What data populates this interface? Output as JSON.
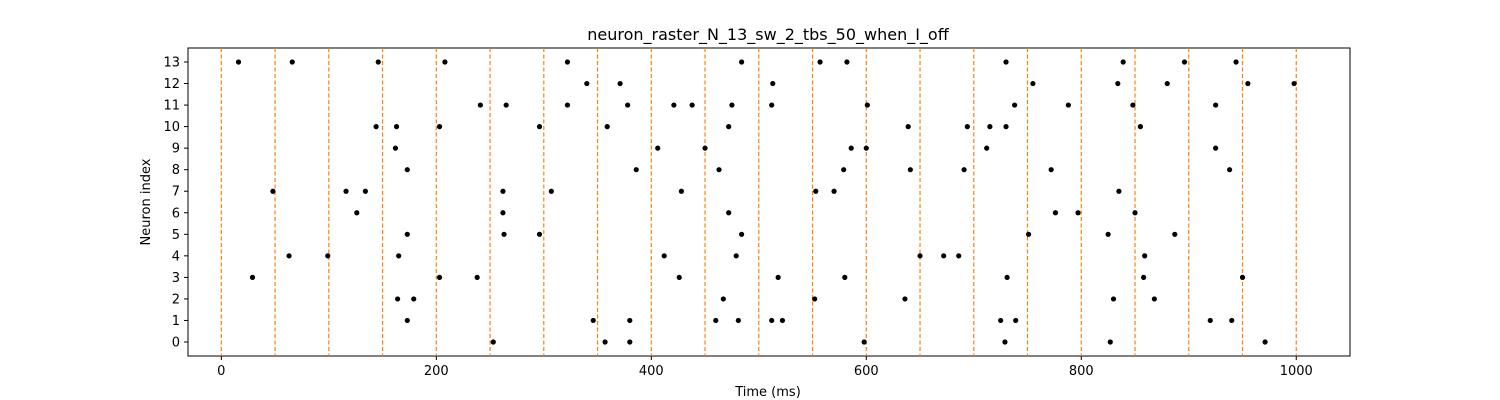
{
  "chart_data": {
    "type": "scatter",
    "title": "neuron_raster_N_13_sw_2_tbs_50_when_I_off",
    "xlabel": "Time (ms)",
    "ylabel": "Neuron index",
    "xlim": [
      -31,
      1050
    ],
    "ylim": [
      -0.65,
      13.65
    ],
    "xticks": [
      0,
      200,
      400,
      600,
      800,
      1000
    ],
    "yticks": [
      0,
      1,
      2,
      3,
      4,
      5,
      6,
      7,
      8,
      9,
      10,
      11,
      12,
      13
    ],
    "grid": false,
    "legend": "none",
    "vlines": {
      "x": [
        0,
        50,
        100,
        150,
        200,
        250,
        300,
        350,
        400,
        450,
        500,
        550,
        600,
        650,
        700,
        750,
        800,
        850,
        900,
        950,
        1000
      ],
      "color": "#ff7f0e",
      "style": "dashed"
    },
    "point_color": "#000000",
    "series": [
      {
        "neuron": 0,
        "x": [
          253,
          357,
          380,
          598,
          729,
          827,
          971
        ]
      },
      {
        "neuron": 1,
        "x": [
          173,
          346,
          380,
          460,
          481,
          512,
          522,
          725,
          739,
          920,
          940
        ]
      },
      {
        "neuron": 2,
        "x": [
          164,
          179,
          467,
          552,
          636,
          830,
          868
        ]
      },
      {
        "neuron": 3,
        "x": [
          29,
          203,
          238,
          426,
          518,
          580,
          731,
          858,
          950
        ]
      },
      {
        "neuron": 4,
        "x": [
          63,
          99,
          165,
          412,
          479,
          650,
          672,
          686,
          859
        ]
      },
      {
        "neuron": 5,
        "x": [
          173,
          263,
          296,
          484,
          751,
          825,
          887
        ]
      },
      {
        "neuron": 6,
        "x": [
          126,
          262,
          472,
          776,
          797,
          850
        ]
      },
      {
        "neuron": 7,
        "x": [
          48,
          116,
          134,
          262,
          307,
          428,
          553,
          570,
          835
        ]
      },
      {
        "neuron": 8,
        "x": [
          173,
          386,
          463,
          579,
          641,
          691,
          772,
          938
        ]
      },
      {
        "neuron": 9,
        "x": [
          162,
          406,
          450,
          586,
          600,
          712,
          925
        ]
      },
      {
        "neuron": 10,
        "x": [
          144,
          163,
          203,
          296,
          359,
          472,
          639,
          694,
          715,
          730,
          855
        ]
      },
      {
        "neuron": 11,
        "x": [
          241,
          265,
          322,
          378,
          421,
          438,
          475,
          512,
          601,
          738,
          788,
          848,
          925
        ]
      },
      {
        "neuron": 12,
        "x": [
          340,
          371,
          513,
          755,
          834,
          880,
          955,
          998
        ]
      },
      {
        "neuron": 13,
        "x": [
          16,
          66,
          146,
          208,
          322,
          484,
          557,
          582,
          730,
          839,
          896,
          944
        ]
      }
    ]
  }
}
